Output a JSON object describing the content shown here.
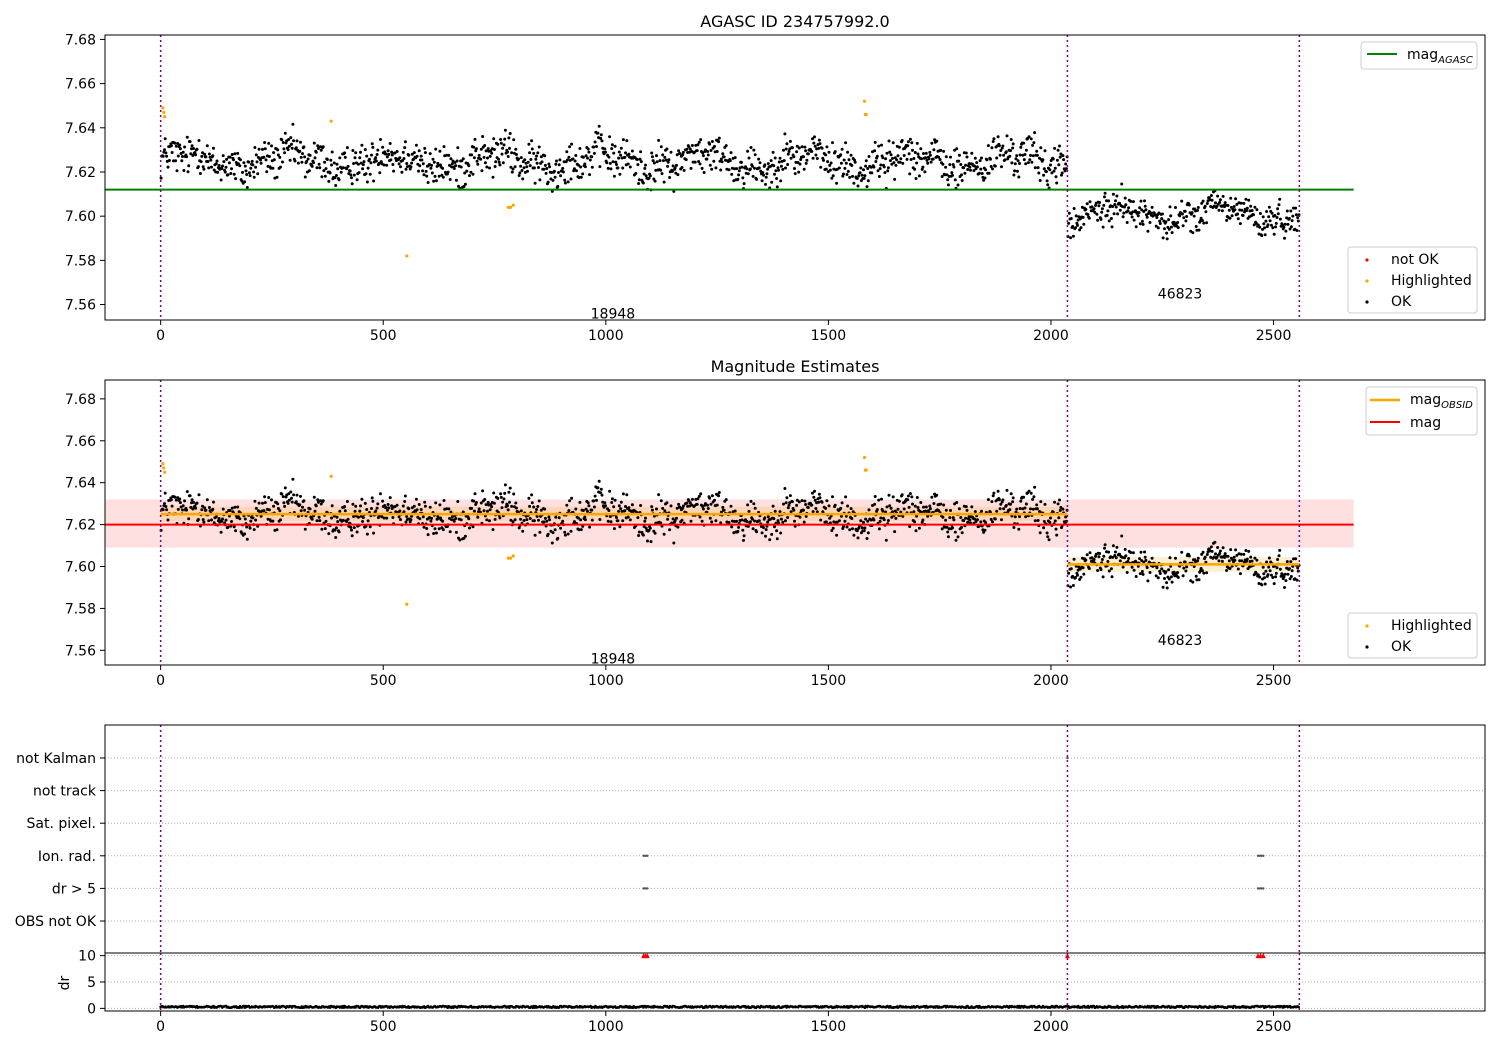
{
  "chart_data": [
    {
      "type": "scatter",
      "title": "AGASC ID 234757992.0",
      "xlabel": "",
      "ylabel": "",
      "xlim": [
        -125,
        2975
      ],
      "ylim": [
        7.553,
        7.682
      ],
      "xticks": [
        0,
        500,
        1000,
        1500,
        2000,
        2500
      ],
      "yticks": [
        7.56,
        7.58,
        7.6,
        7.62,
        7.64,
        7.66,
        7.68
      ],
      "obs_boundaries": [
        0,
        2037,
        2558
      ],
      "observations": [
        {
          "obsid": "18948",
          "x_label_at": 1016,
          "y_label_at": 7.556,
          "x_range": [
            0,
            2037
          ],
          "center": 7.625,
          "spread": 0.007
        },
        {
          "obsid": "46823",
          "x_label_at": 2290,
          "y_label_at": 7.565,
          "x_range": [
            2037,
            2558
          ],
          "center": 7.601,
          "spread": 0.0055
        }
      ],
      "reference_lines": [
        {
          "name": "mag",
          "subscript": "AGASC",
          "value": 7.612,
          "x_range": [
            -125,
            2680
          ],
          "color": "#008000"
        }
      ],
      "highlighted_points": [
        {
          "x": 5,
          "y": 7.649
        },
        {
          "x": 7,
          "y": 7.647
        },
        {
          "x": 9,
          "y": 7.645
        },
        {
          "x": 383,
          "y": 7.643
        },
        {
          "x": 553,
          "y": 7.582
        },
        {
          "x": 781,
          "y": 7.604
        },
        {
          "x": 786,
          "y": 7.604
        },
        {
          "x": 792,
          "y": 7.605
        },
        {
          "x": 1581,
          "y": 7.652
        },
        {
          "x": 1583,
          "y": 7.646
        },
        {
          "x": 1585,
          "y": 7.646
        }
      ],
      "legend": {
        "placement": "top-right",
        "entries": [
          {
            "label": "mag",
            "subscript": "AGASC",
            "color": "#008000"
          }
        ]
      },
      "legend2": {
        "placement": "lower-right",
        "entries": [
          {
            "label": "not OK",
            "color": "#ff0000"
          },
          {
            "label": "Highlighted",
            "color": "#ffa500"
          },
          {
            "label": "OK",
            "color": "#000000"
          }
        ]
      }
    },
    {
      "type": "scatter",
      "title": "Magnitude Estimates",
      "xlabel": "",
      "ylabel": "",
      "xlim": [
        -125,
        2975
      ],
      "ylim": [
        7.553,
        7.689
      ],
      "xticks": [
        0,
        500,
        1000,
        1500,
        2000,
        2500
      ],
      "yticks": [
        7.56,
        7.58,
        7.6,
        7.62,
        7.64,
        7.66,
        7.68
      ],
      "obs_boundaries": [
        0,
        2037,
        2558
      ],
      "observations": [
        {
          "obsid": "18948",
          "x_label_at": 1016,
          "y_label_at": 7.556,
          "x_range": [
            0,
            2037
          ],
          "center": 7.625,
          "spread": 0.007
        },
        {
          "obsid": "46823",
          "x_label_at": 2290,
          "y_label_at": 7.565,
          "x_range": [
            2037,
            2558
          ],
          "center": 7.601,
          "spread": 0.0055
        }
      ],
      "mag_obsid_segments": [
        {
          "x_range": [
            0,
            2037
          ],
          "value": 7.625
        },
        {
          "x_range": [
            2037,
            2558
          ],
          "value": 7.601
        }
      ],
      "mag_line": {
        "value": 7.62,
        "band": [
          7.609,
          7.632
        ],
        "x_range": [
          -125,
          2680
        ]
      },
      "highlighted_points": [
        {
          "x": 5,
          "y": 7.649
        },
        {
          "x": 7,
          "y": 7.647
        },
        {
          "x": 9,
          "y": 7.645
        },
        {
          "x": 383,
          "y": 7.643
        },
        {
          "x": 553,
          "y": 7.582
        },
        {
          "x": 781,
          "y": 7.604
        },
        {
          "x": 786,
          "y": 7.604
        },
        {
          "x": 792,
          "y": 7.605
        },
        {
          "x": 1581,
          "y": 7.652
        },
        {
          "x": 1583,
          "y": 7.646
        },
        {
          "x": 1585,
          "y": 7.646
        }
      ],
      "legend": {
        "placement": "top-right",
        "entries": [
          {
            "label": "mag",
            "subscript": "OBSID",
            "color": "#ffa500"
          },
          {
            "label": "mag",
            "subscript": "",
            "color": "#ff0000"
          }
        ]
      },
      "legend2": {
        "placement": "lower-right",
        "entries": [
          {
            "label": "Highlighted",
            "color": "#ffa500"
          },
          {
            "label": "OK",
            "color": "#000000"
          }
        ]
      }
    },
    {
      "type": "scatter",
      "title": "",
      "xlim": [
        -125,
        2975
      ],
      "obs_boundaries": [
        0,
        2037,
        2558
      ],
      "categories": [
        "not Kalman",
        "not track",
        "Sat. pixel.",
        "Ion. rad.",
        "dr > 5",
        "OBS not OK"
      ],
      "flag_points": [
        {
          "category": "not Kalman",
          "x": [
            2037
          ]
        },
        {
          "category": "Ion. rad.",
          "x": [
            1085,
            1089,
            1093,
            2465,
            2469,
            2473,
            2477
          ]
        },
        {
          "category": "dr > 5",
          "x": [
            1085,
            1089,
            1093,
            2465,
            2469,
            2473,
            2477
          ]
        }
      ]
    },
    {
      "type": "scatter",
      "title": "",
      "xlabel": "",
      "ylabel": "dr",
      "xlim": [
        -125,
        2975
      ],
      "ylim": [
        -0.5,
        10.5
      ],
      "xticks": [
        0,
        500,
        1000,
        1500,
        2000,
        2500
      ],
      "yticks": [
        0,
        5,
        10
      ],
      "obs_boundaries": [
        0,
        2037,
        2558
      ],
      "dr_baseline": {
        "x_range": [
          0,
          2558
        ],
        "typical": 0.3
      },
      "dr_capped_points": [
        {
          "x": 1085,
          "y": 10
        },
        {
          "x": 1089,
          "y": 10
        },
        {
          "x": 1093,
          "y": 10
        },
        {
          "x": 2037,
          "y": 10
        },
        {
          "x": 2465,
          "y": 10
        },
        {
          "x": 2471,
          "y": 10
        },
        {
          "x": 2477,
          "y": 10
        }
      ]
    }
  ]
}
